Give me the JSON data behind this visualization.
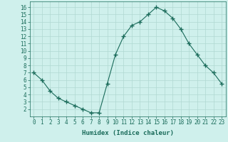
{
  "x": [
    0,
    1,
    2,
    3,
    4,
    5,
    6,
    7,
    8,
    9,
    10,
    11,
    12,
    13,
    14,
    15,
    16,
    17,
    18,
    19,
    20,
    21,
    22,
    23
  ],
  "y": [
    7,
    6,
    4.5,
    3.5,
    3,
    2.5,
    2,
    1.5,
    1.5,
    5.5,
    9.5,
    12,
    13.5,
    14,
    15,
    16,
    15.5,
    14.5,
    13,
    11,
    9.5,
    8,
    7,
    5.5
  ],
  "line_color": "#1a6b5a",
  "marker": "+",
  "marker_size": 4,
  "bg_color": "#cff0ec",
  "grid_color": "#b0d8d2",
  "xlabel": "Humidex (Indice chaleur)",
  "xlim": [
    -0.5,
    23.5
  ],
  "ylim": [
    1.0,
    16.8
  ],
  "xticks": [
    0,
    1,
    2,
    3,
    4,
    5,
    6,
    7,
    8,
    9,
    10,
    11,
    12,
    13,
    14,
    15,
    16,
    17,
    18,
    19,
    20,
    21,
    22,
    23
  ],
  "yticks": [
    2,
    3,
    4,
    5,
    6,
    7,
    8,
    9,
    10,
    11,
    12,
    13,
    14,
    15,
    16
  ],
  "xlabel_fontsize": 6.5,
  "tick_fontsize": 5.5
}
